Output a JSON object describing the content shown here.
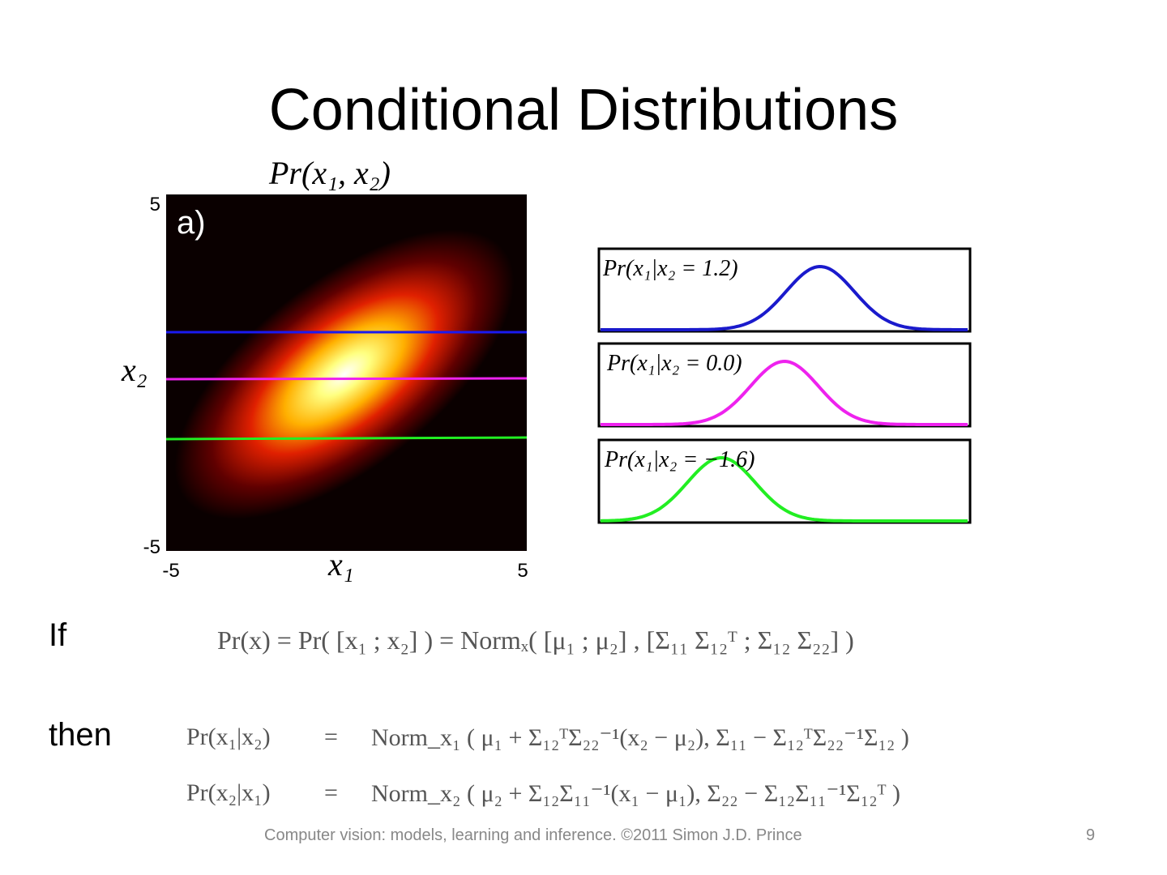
{
  "title": "Conditional Distributions",
  "joint_plot": {
    "label": "Pr(x₁, x₂)",
    "panel": "a)",
    "y_top": "5",
    "y_bottom": "-5",
    "y_label": "x₂",
    "x_left": "-5",
    "x_right": "5",
    "x_label": "x₁"
  },
  "conditionals": [
    "Pr(x₁|x₂ = 1.2)",
    "Pr(x₁|x₂ = 0.0)",
    "Pr(x₁|x₂ = −1.6)"
  ],
  "if_label": "If",
  "if_equation": "Pr(x) = Pr( [x₁ ; x₂] ) = Normₓ( [μ₁ ; μ₂] , [Σ₁₁ Σ₁₂ᵀ ; Σ₁₂ Σ₂₂] )",
  "then_label": "then",
  "then_equations": [
    {
      "lhs": "Pr(x₁|x₂)",
      "rhs": "Norm_x₁ ( μ₁ + Σ₁₂ᵀΣ₂₂⁻¹(x₂ − μ₂), Σ₁₁ − Σ₁₂ᵀΣ₂₂⁻¹Σ₁₂ )"
    },
    {
      "lhs": "Pr(x₂|x₁)",
      "rhs": "Norm_x₂ ( μ₂ + Σ₁₂Σ₁₁⁻¹(x₁ − μ₁), Σ₂₂ − Σ₁₂Σ₁₁⁻¹Σ₁₂ᵀ )"
    }
  ],
  "footer": "Computer vision: models, learning and inference.  ©2011 Simon J.D. Prince",
  "page_number": "9"
}
